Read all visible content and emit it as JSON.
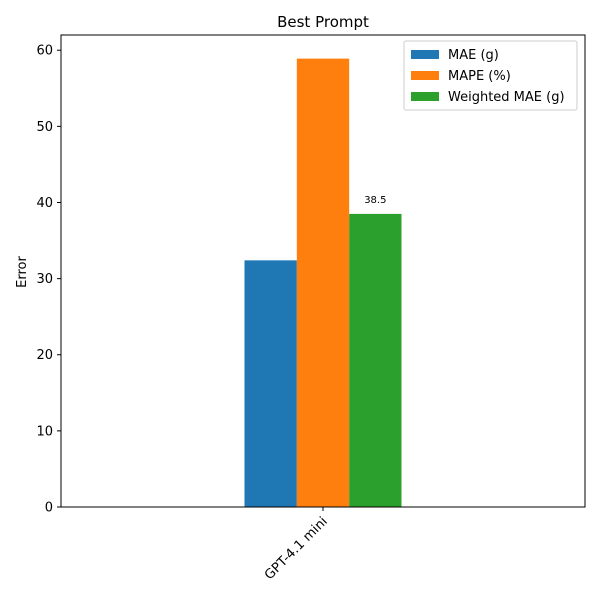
{
  "chart_data": {
    "type": "bar",
    "title": "Best Prompt",
    "xlabel": "",
    "ylabel": "Error",
    "categories": [
      "GPT-4.1 mini"
    ],
    "series": [
      {
        "name": "MAE (g)",
        "values": [
          32.4
        ],
        "color": "#1f77b4"
      },
      {
        "name": "MAPE (%)",
        "values": [
          58.9
        ],
        "color": "#ff7f0e"
      },
      {
        "name": "Weighted MAE (g)",
        "values": [
          38.5
        ],
        "color": "#2ca02c"
      }
    ],
    "data_labels": [
      {
        "series": "Weighted MAE (g)",
        "category": "GPT-4.1 mini",
        "text": "38.5"
      }
    ],
    "ylim": [
      0,
      62
    ],
    "yticks": [
      0,
      10,
      20,
      30,
      40,
      50,
      60
    ],
    "grid": false,
    "legend_position": "top-right"
  }
}
